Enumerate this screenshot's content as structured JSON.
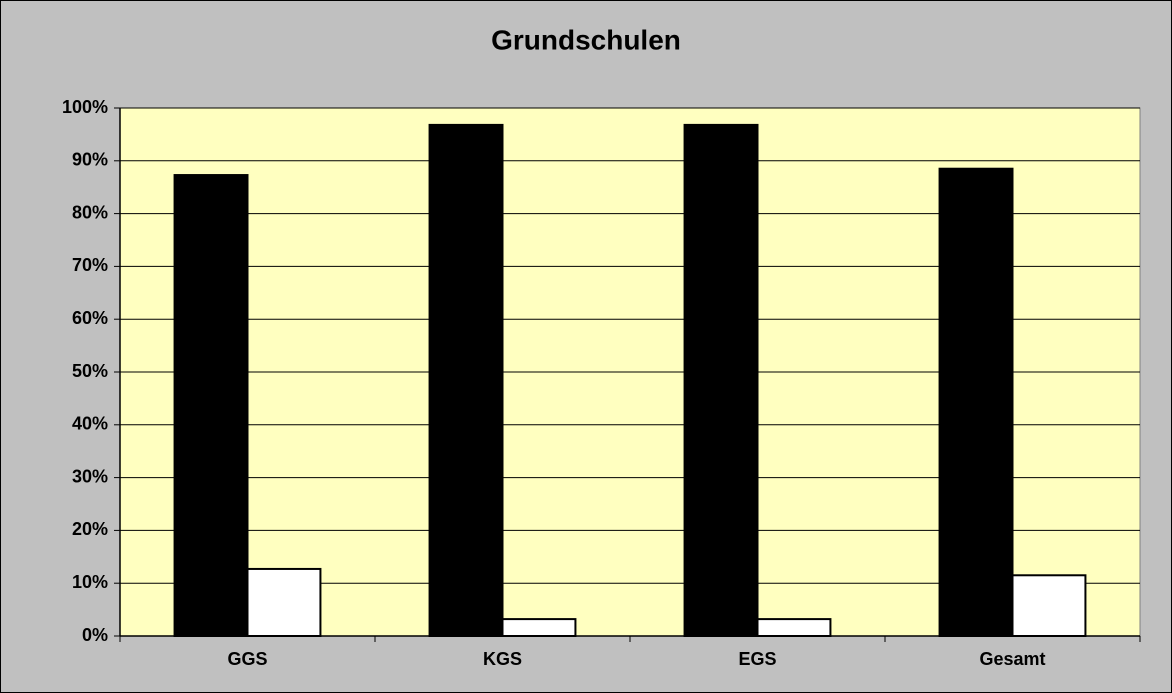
{
  "chart_data": {
    "type": "bar",
    "title": "Grundschulen",
    "categories": [
      "GGS",
      "KGS",
      "EGS",
      "Gesamt"
    ],
    "series": [
      {
        "color": "#000000",
        "values": [
          87.3,
          96.8,
          96.8,
          88.5
        ]
      },
      {
        "color": "#ffffff",
        "values": [
          12.7,
          3.2,
          3.2,
          11.5
        ]
      }
    ],
    "ylim": [
      0,
      100
    ],
    "yticks": [
      {
        "value": 0,
        "label": "0%"
      },
      {
        "value": 10,
        "label": "10%"
      },
      {
        "value": 20,
        "label": "20%"
      },
      {
        "value": 30,
        "label": "30%"
      },
      {
        "value": 40,
        "label": "40%"
      },
      {
        "value": 50,
        "label": "50%"
      },
      {
        "value": 60,
        "label": "60%"
      },
      {
        "value": 70,
        "label": "70%"
      },
      {
        "value": 80,
        "label": "80%"
      },
      {
        "value": 90,
        "label": "90%"
      },
      {
        "value": 100,
        "label": "100%"
      }
    ],
    "grid": true,
    "plot_background": "#ffffc0"
  }
}
